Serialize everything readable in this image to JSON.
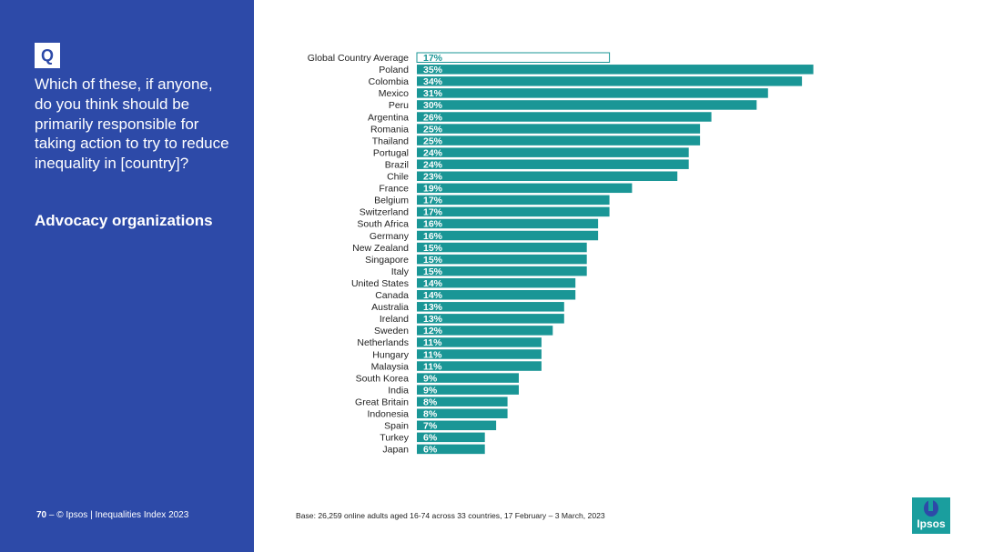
{
  "sidebar": {
    "badge": "Q",
    "question": "Which of these, if anyone, do you think should be primarily responsible for taking action to try to reduce inequality in [country]?",
    "subhead": "Advocacy organizations"
  },
  "footer": {
    "page_number": "70",
    "separator": " –  ",
    "copyright": "© Ipsos | Inequalities Index 2023",
    "base_note": "Base: 26,259 online adults aged 16-74 across 33 countries, 17 February – 3 March, 2023",
    "logo_text": "Ipsos"
  },
  "colors": {
    "sidebar": "#2d4aa8",
    "bar": "#1a9696",
    "highlight_outline": "#1a9696"
  },
  "chart_data": {
    "type": "bar",
    "orientation": "horizontal",
    "categories": [
      "Global Country Average",
      "Poland",
      "Colombia",
      "Mexico",
      "Peru",
      "Argentina",
      "Romania",
      "Thailand",
      "Portugal",
      "Brazil",
      "Chile",
      "France",
      "Belgium",
      "Switzerland",
      "South Africa",
      "Germany",
      "New Zealand",
      "Singapore",
      "Italy",
      "United States",
      "Canada",
      "Australia",
      "Ireland",
      "Sweden",
      "Netherlands",
      "Hungary",
      "Malaysia",
      "South Korea",
      "India",
      "Great Britain",
      "Indonesia",
      "Spain",
      "Turkey",
      "Japan"
    ],
    "values": [
      17,
      35,
      34,
      31,
      30,
      26,
      25,
      25,
      24,
      24,
      23,
      19,
      17,
      17,
      16,
      16,
      15,
      15,
      15,
      14,
      14,
      13,
      13,
      12,
      11,
      11,
      11,
      9,
      9,
      8,
      8,
      7,
      6,
      6
    ],
    "value_labels": [
      "17%",
      "35%",
      "34%",
      "31%",
      "30%",
      "26%",
      "25%",
      "25%",
      "24%",
      "24%",
      "23%",
      "19%",
      "17%",
      "17%",
      "16%",
      "16%",
      "15%",
      "15%",
      "15%",
      "14%",
      "14%",
      "13%",
      "13%",
      "12%",
      "11%",
      "11%",
      "11%",
      "9%",
      "9%",
      "8%",
      "8%",
      "7%",
      "6%",
      "6%"
    ],
    "highlight_index": 0,
    "xlim": [
      0,
      36
    ],
    "title": "",
    "xlabel": "",
    "ylabel": "",
    "grid": false,
    "legend": "none"
  }
}
